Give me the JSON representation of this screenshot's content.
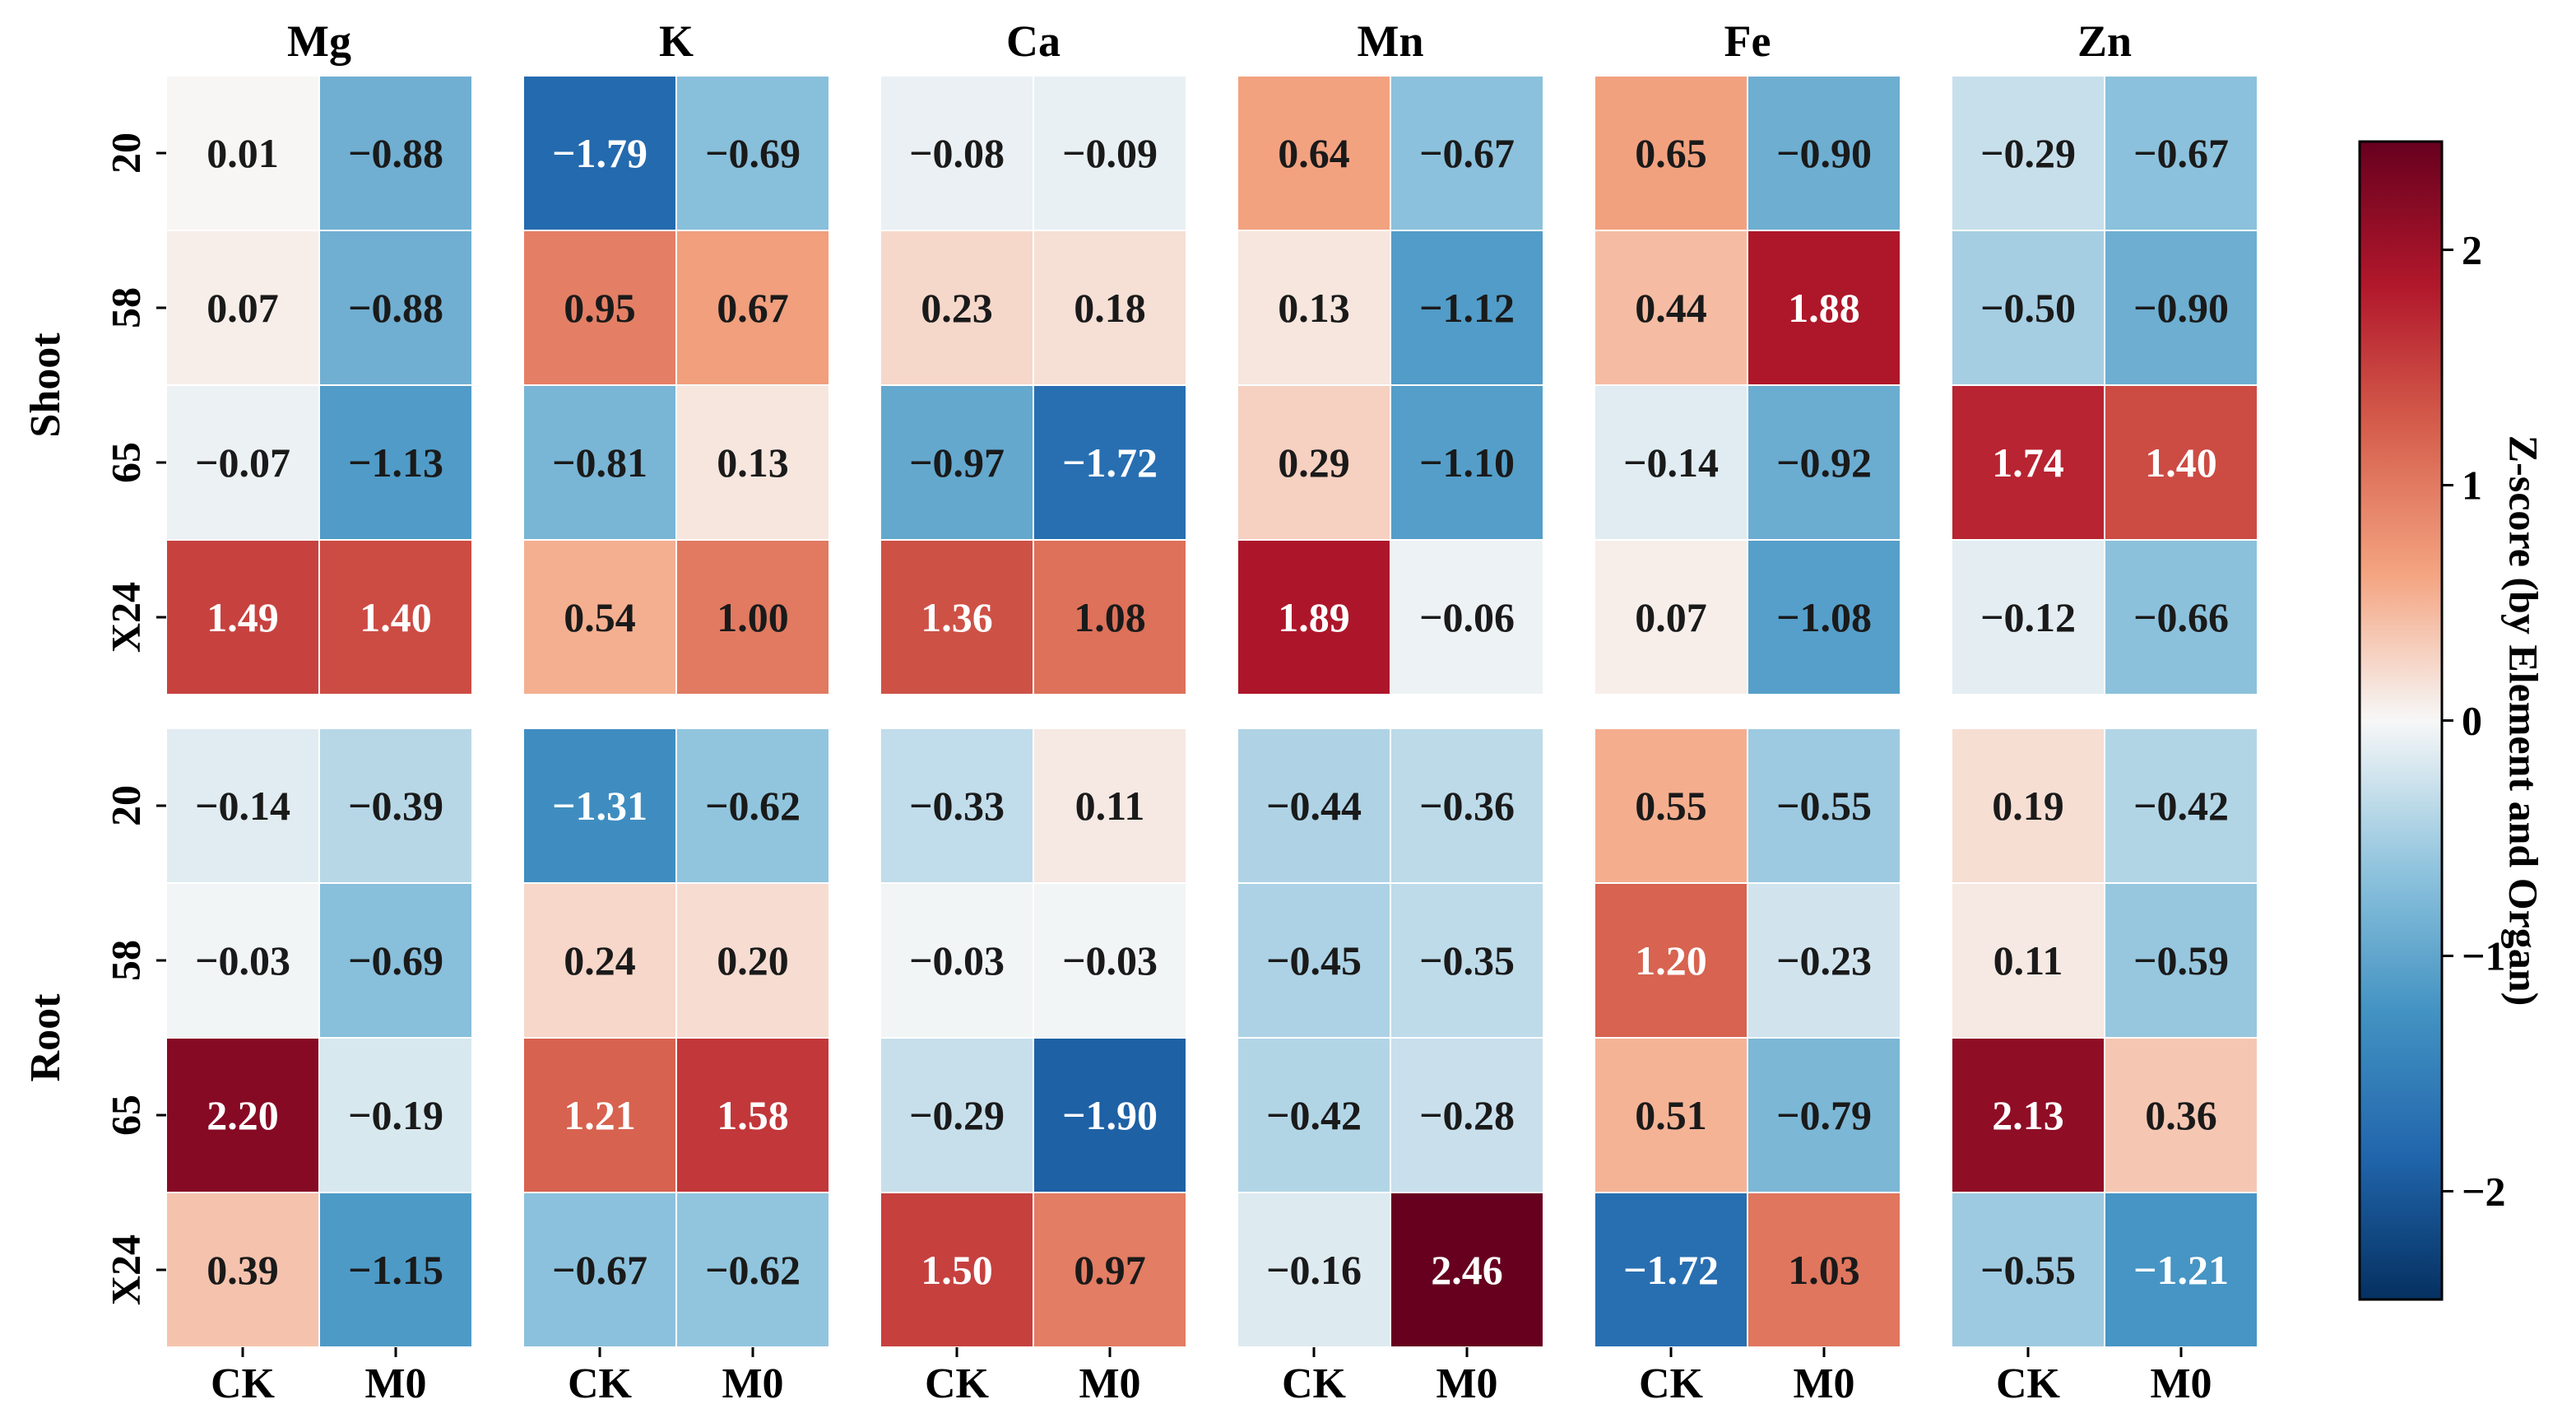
{
  "chart_data": {
    "type": "heatmap",
    "elements": [
      "Mg",
      "K",
      "Ca",
      "Mn",
      "Fe",
      "Zn"
    ],
    "organs": [
      "Shoot",
      "Root"
    ],
    "rows": [
      "20",
      "58",
      "65",
      "X24"
    ],
    "columns": [
      "CK",
      "M0"
    ],
    "values": {
      "Shoot": {
        "Mg": [
          [
            0.01,
            -0.88
          ],
          [
            0.07,
            -0.88
          ],
          [
            -0.07,
            -1.13
          ],
          [
            1.49,
            1.4
          ]
        ],
        "K": [
          [
            -1.79,
            -0.69
          ],
          [
            0.95,
            0.67
          ],
          [
            -0.81,
            0.13
          ],
          [
            0.54,
            1.0
          ]
        ],
        "Ca": [
          [
            -0.08,
            -0.09
          ],
          [
            0.23,
            0.18
          ],
          [
            -0.97,
            -1.72
          ],
          [
            1.36,
            1.08
          ]
        ],
        "Mn": [
          [
            0.64,
            -0.67
          ],
          [
            0.13,
            -1.12
          ],
          [
            0.29,
            -1.1
          ],
          [
            1.89,
            -0.06
          ]
        ],
        "Fe": [
          [
            0.65,
            -0.9
          ],
          [
            0.44,
            1.88
          ],
          [
            -0.14,
            -0.92
          ],
          [
            0.07,
            -1.08
          ]
        ],
        "Zn": [
          [
            -0.29,
            -0.67
          ],
          [
            -0.5,
            -0.9
          ],
          [
            1.74,
            1.4
          ],
          [
            -0.12,
            -0.66
          ]
        ]
      },
      "Root": {
        "Mg": [
          [
            -0.14,
            -0.39
          ],
          [
            -0.03,
            -0.69
          ],
          [
            2.2,
            -0.19
          ],
          [
            0.39,
            -1.15
          ]
        ],
        "K": [
          [
            -1.31,
            -0.62
          ],
          [
            0.24,
            0.2
          ],
          [
            1.21,
            1.58
          ],
          [
            -0.67,
            -0.62
          ]
        ],
        "Ca": [
          [
            -0.33,
            0.11
          ],
          [
            -0.03,
            -0.03
          ],
          [
            -0.29,
            -1.9
          ],
          [
            1.5,
            0.97
          ]
        ],
        "Mn": [
          [
            -0.44,
            -0.36
          ],
          [
            -0.45,
            -0.35
          ],
          [
            -0.42,
            -0.28
          ],
          [
            -0.16,
            2.46
          ]
        ],
        "Fe": [
          [
            0.55,
            -0.55
          ],
          [
            1.2,
            -0.23
          ],
          [
            0.51,
            -0.79
          ],
          [
            -1.72,
            1.03
          ]
        ],
        "Zn": [
          [
            0.19,
            -0.42
          ],
          [
            0.11,
            -0.59
          ],
          [
            2.13,
            0.36
          ],
          [
            -0.55,
            -1.21
          ]
        ]
      }
    },
    "colorbar": {
      "label": "Z-score (by Element and Organ)",
      "range": [
        -2.46,
        2.46
      ],
      "ticks": [
        -2,
        -1,
        0,
        1,
        2
      ],
      "cmap": "RdBu_r"
    }
  }
}
